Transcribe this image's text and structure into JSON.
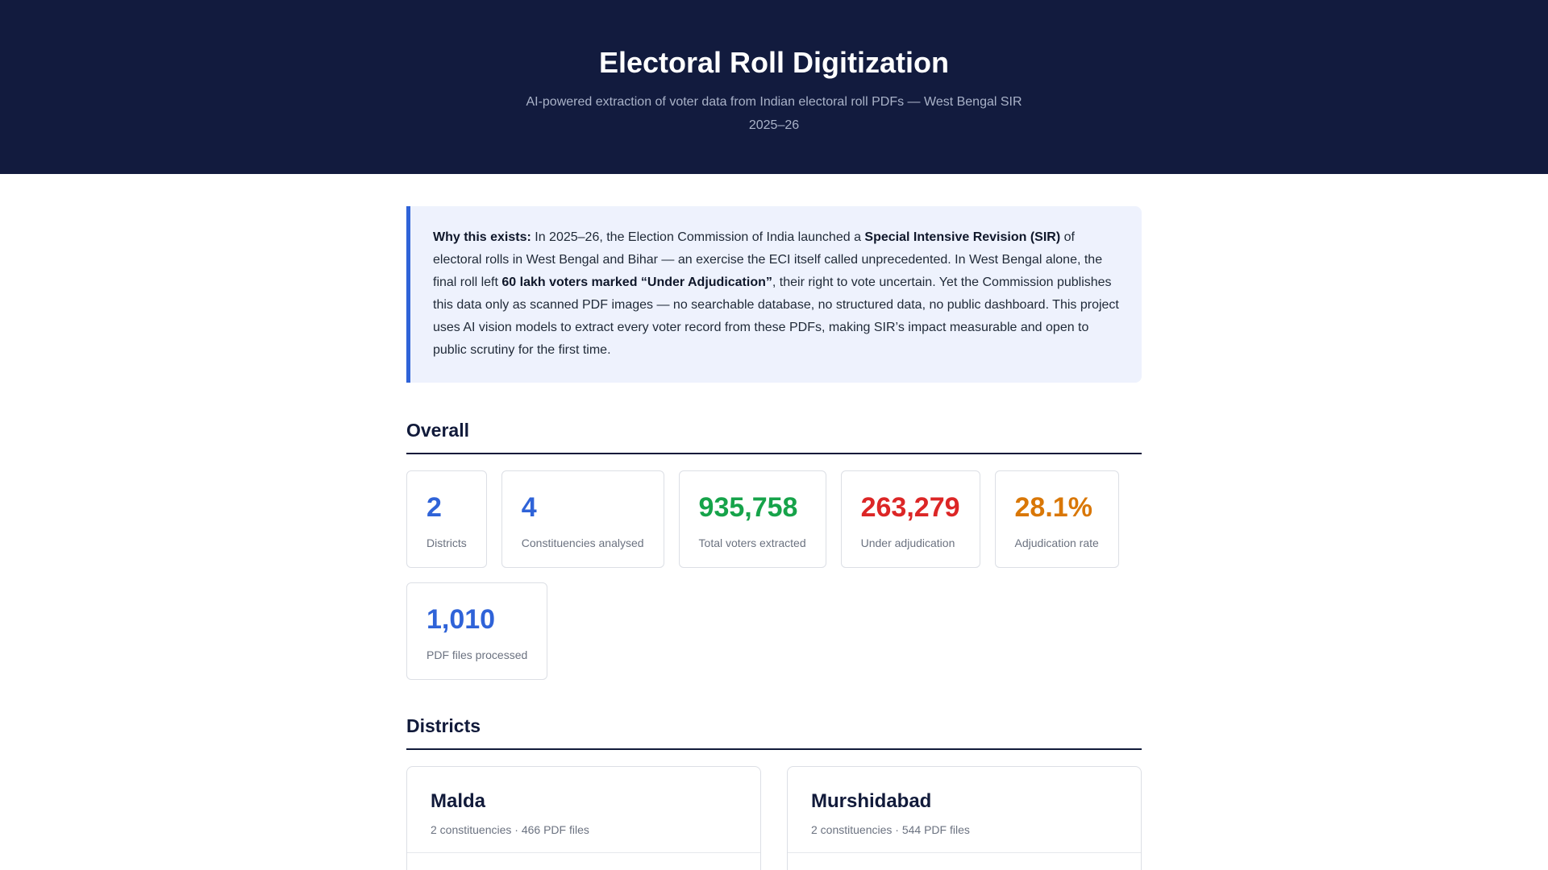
{
  "hero": {
    "title": "Electoral Roll Digitization",
    "subtitle": "AI-powered extraction of voter data from Indian electoral roll PDFs — West Bengal SIR 2025–26"
  },
  "callout": {
    "lead": "Why this exists:",
    "text1": " In 2025–26, the Election Commission of India launched a ",
    "bold1": "Special Intensive Revision (SIR)",
    "text2": " of electoral rolls in West Bengal and Bihar — an exercise the ECI itself called unprecedented. In West Bengal alone, the final roll left ",
    "bold2": "60 lakh voters marked “Under Adjudication”",
    "text3": ", their right to vote uncertain. Yet the Commission publishes this data only as scanned PDF images — no searchable database, no structured data, no public dashboard. This project uses AI vision models to extract every voter record from these PDFs, making SIR’s impact measurable and open to public scrutiny for the first time."
  },
  "overall": {
    "heading": "Overall",
    "stats": [
      {
        "value": "2",
        "label": "Districts",
        "color": "#2f63d8"
      },
      {
        "value": "4",
        "label": "Constituencies analysed",
        "color": "#2f63d8"
      },
      {
        "value": "935,758",
        "label": "Total voters extracted",
        "color": "#16a34a"
      },
      {
        "value": "263,279",
        "label": "Under adjudication",
        "color": "#dc2626"
      },
      {
        "value": "28.1%",
        "label": "Adjudication rate",
        "color": "#d97706"
      },
      {
        "value": "1,010",
        "label": "PDF files processed",
        "color": "#2f63d8"
      }
    ]
  },
  "districts": {
    "heading": "Districts",
    "items": [
      {
        "name": "Malda",
        "meta": "2 constituencies · 466 PDF files"
      },
      {
        "name": "Murshidabad",
        "meta": "2 constituencies · 544 PDF files"
      }
    ]
  }
}
